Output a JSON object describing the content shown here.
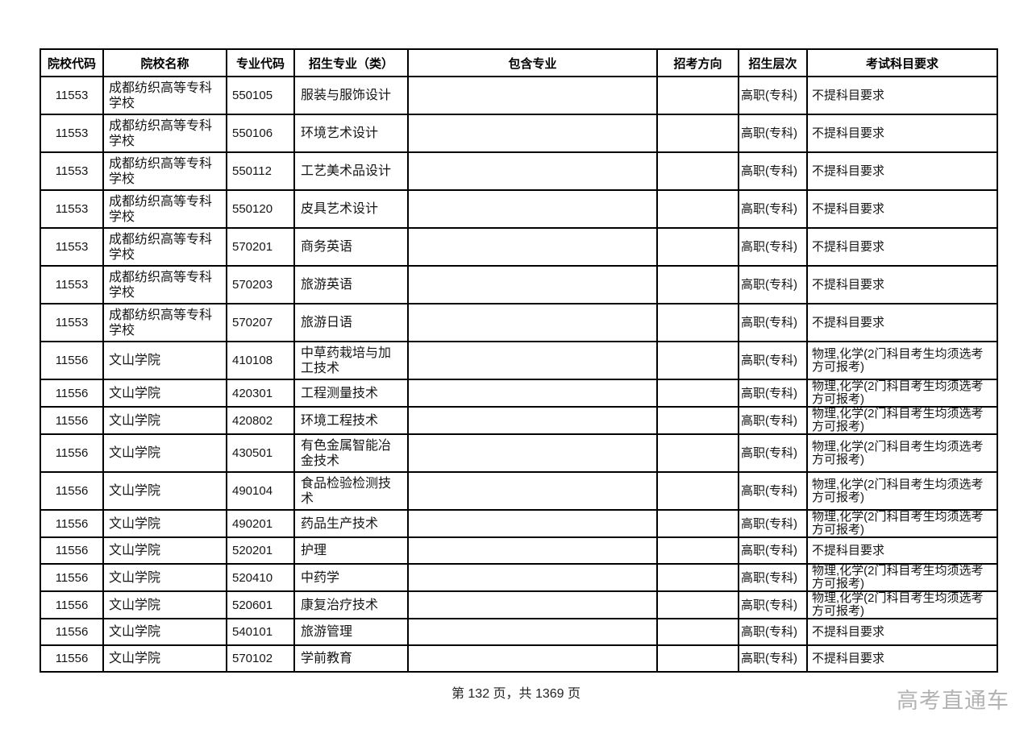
{
  "table": {
    "columns": [
      {
        "key": "school_code",
        "label": "院校代码"
      },
      {
        "key": "school_name",
        "label": "院校名称"
      },
      {
        "key": "major_code",
        "label": "专业代码"
      },
      {
        "key": "major_name",
        "label": "招生专业（类）"
      },
      {
        "key": "included_majors",
        "label": "包含专业"
      },
      {
        "key": "exam_direction",
        "label": "招考方向"
      },
      {
        "key": "level",
        "label": "招生层次"
      },
      {
        "key": "subject_req",
        "label": "考试科目要求"
      }
    ],
    "rows": [
      {
        "school_code": "11553",
        "school_name": "成都纺织高等专科学校",
        "major_code": "550105",
        "major_name": "服装与服饰设计",
        "included_majors": "",
        "exam_direction": "",
        "level": "高职(专科)",
        "subject_req": "不提科目要求"
      },
      {
        "school_code": "11553",
        "school_name": "成都纺织高等专科学校",
        "major_code": "550106",
        "major_name": "环境艺术设计",
        "included_majors": "",
        "exam_direction": "",
        "level": "高职(专科)",
        "subject_req": "不提科目要求"
      },
      {
        "school_code": "11553",
        "school_name": "成都纺织高等专科学校",
        "major_code": "550112",
        "major_name": "工艺美术品设计",
        "included_majors": "",
        "exam_direction": "",
        "level": "高职(专科)",
        "subject_req": "不提科目要求"
      },
      {
        "school_code": "11553",
        "school_name": "成都纺织高等专科学校",
        "major_code": "550120",
        "major_name": "皮具艺术设计",
        "included_majors": "",
        "exam_direction": "",
        "level": "高职(专科)",
        "subject_req": "不提科目要求"
      },
      {
        "school_code": "11553",
        "school_name": "成都纺织高等专科学校",
        "major_code": "570201",
        "major_name": "商务英语",
        "included_majors": "",
        "exam_direction": "",
        "level": "高职(专科)",
        "subject_req": "不提科目要求"
      },
      {
        "school_code": "11553",
        "school_name": "成都纺织高等专科学校",
        "major_code": "570203",
        "major_name": "旅游英语",
        "included_majors": "",
        "exam_direction": "",
        "level": "高职(专科)",
        "subject_req": "不提科目要求"
      },
      {
        "school_code": "11553",
        "school_name": "成都纺织高等专科学校",
        "major_code": "570207",
        "major_name": "旅游日语",
        "included_majors": "",
        "exam_direction": "",
        "level": "高职(专科)",
        "subject_req": "不提科目要求"
      },
      {
        "school_code": "11556",
        "school_name": "文山学院",
        "major_code": "410108",
        "major_name": "中草药栽培与加工技术",
        "included_majors": "",
        "exam_direction": "",
        "level": "高职(专科)",
        "subject_req": "物理,化学(2门科目考生均须选考方可报考)"
      },
      {
        "school_code": "11556",
        "school_name": "文山学院",
        "major_code": "420301",
        "major_name": "工程测量技术",
        "included_majors": "",
        "exam_direction": "",
        "level": "高职(专科)",
        "subject_req": "物理,化学(2门科目考生均须选考方可报考)"
      },
      {
        "school_code": "11556",
        "school_name": "文山学院",
        "major_code": "420802",
        "major_name": "环境工程技术",
        "included_majors": "",
        "exam_direction": "",
        "level": "高职(专科)",
        "subject_req": "物理,化学(2门科目考生均须选考方可报考)"
      },
      {
        "school_code": "11556",
        "school_name": "文山学院",
        "major_code": "430501",
        "major_name": "有色金属智能冶金技术",
        "included_majors": "",
        "exam_direction": "",
        "level": "高职(专科)",
        "subject_req": "物理,化学(2门科目考生均须选考方可报考)"
      },
      {
        "school_code": "11556",
        "school_name": "文山学院",
        "major_code": "490104",
        "major_name": "食品检验检测技术",
        "included_majors": "",
        "exam_direction": "",
        "level": "高职(专科)",
        "subject_req": "物理,化学(2门科目考生均须选考方可报考)"
      },
      {
        "school_code": "11556",
        "school_name": "文山学院",
        "major_code": "490201",
        "major_name": "药品生产技术",
        "included_majors": "",
        "exam_direction": "",
        "level": "高职(专科)",
        "subject_req": "物理,化学(2门科目考生均须选考方可报考)"
      },
      {
        "school_code": "11556",
        "school_name": "文山学院",
        "major_code": "520201",
        "major_name": "护理",
        "included_majors": "",
        "exam_direction": "",
        "level": "高职(专科)",
        "subject_req": "不提科目要求"
      },
      {
        "school_code": "11556",
        "school_name": "文山学院",
        "major_code": "520410",
        "major_name": "中药学",
        "included_majors": "",
        "exam_direction": "",
        "level": "高职(专科)",
        "subject_req": "物理,化学(2门科目考生均须选考方可报考)"
      },
      {
        "school_code": "11556",
        "school_name": "文山学院",
        "major_code": "520601",
        "major_name": "康复治疗技术",
        "included_majors": "",
        "exam_direction": "",
        "level": "高职(专科)",
        "subject_req": "物理,化学(2门科目考生均须选考方可报考)"
      },
      {
        "school_code": "11556",
        "school_name": "文山学院",
        "major_code": "540101",
        "major_name": "旅游管理",
        "included_majors": "",
        "exam_direction": "",
        "level": "高职(专科)",
        "subject_req": "不提科目要求"
      },
      {
        "school_code": "11556",
        "school_name": "文山学院",
        "major_code": "570102",
        "major_name": "学前教育",
        "included_majors": "",
        "exam_direction": "",
        "level": "高职(专科)",
        "subject_req": "不提科目要求"
      }
    ]
  },
  "footer": {
    "page_info": "第 132 页，共 1369 页"
  },
  "watermark": {
    "text": "高考直通车"
  }
}
